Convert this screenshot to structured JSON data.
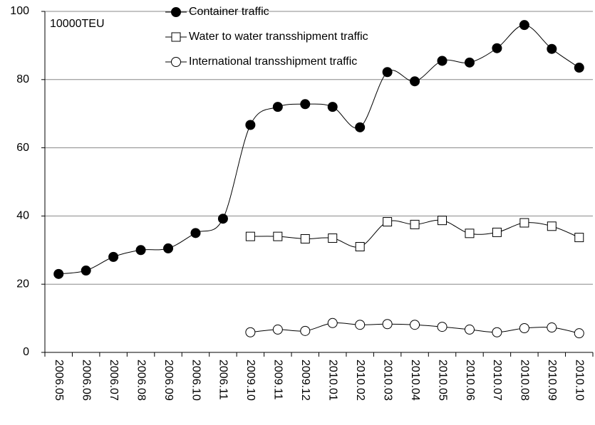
{
  "chart_data": {
    "type": "line",
    "y_label": "10000TEU",
    "categories": [
      "2006.05",
      "2006.06",
      "2006.07",
      "2006.08",
      "2006.09",
      "2006.10",
      "2006.11",
      "2009.10",
      "2009.11",
      "2009.12",
      "2010.01",
      "2010.02",
      "2010.03",
      "2010.04",
      "2010.05",
      "2010.06",
      "2010.07",
      "2010.08",
      "2010.09",
      "2010.10"
    ],
    "series": [
      {
        "name": "Container traffic",
        "color": "#000000",
        "marker": "filled-circle",
        "values": [
          23,
          24,
          28,
          30,
          30.5,
          35,
          39.2,
          66.7,
          72,
          72.8,
          72,
          66,
          82.2,
          79.5,
          85.5,
          85,
          89.2,
          96,
          89,
          83.5
        ]
      },
      {
        "name": "Water to water transshipment traffic",
        "color": "#000000",
        "marker": "open-square",
        "values": [
          null,
          null,
          null,
          null,
          null,
          null,
          null,
          34,
          34,
          33.3,
          33.5,
          31,
          38.3,
          37.5,
          38.7,
          34.9,
          35.2,
          38,
          37,
          33.7
        ]
      },
      {
        "name": "International transshipment traffic",
        "color": "#000000",
        "marker": "open-circle",
        "values": [
          null,
          null,
          null,
          null,
          null,
          null,
          null,
          5.9,
          6.7,
          6.3,
          8.6,
          8.1,
          8.3,
          8.1,
          7.5,
          6.7,
          5.9,
          7.1,
          7.3,
          5.6
        ]
      }
    ],
    "ylim": [
      0,
      100
    ],
    "yticks": [
      0,
      20,
      40,
      60,
      80,
      100
    ],
    "grid": true,
    "smooth": true,
    "legend": "top"
  }
}
